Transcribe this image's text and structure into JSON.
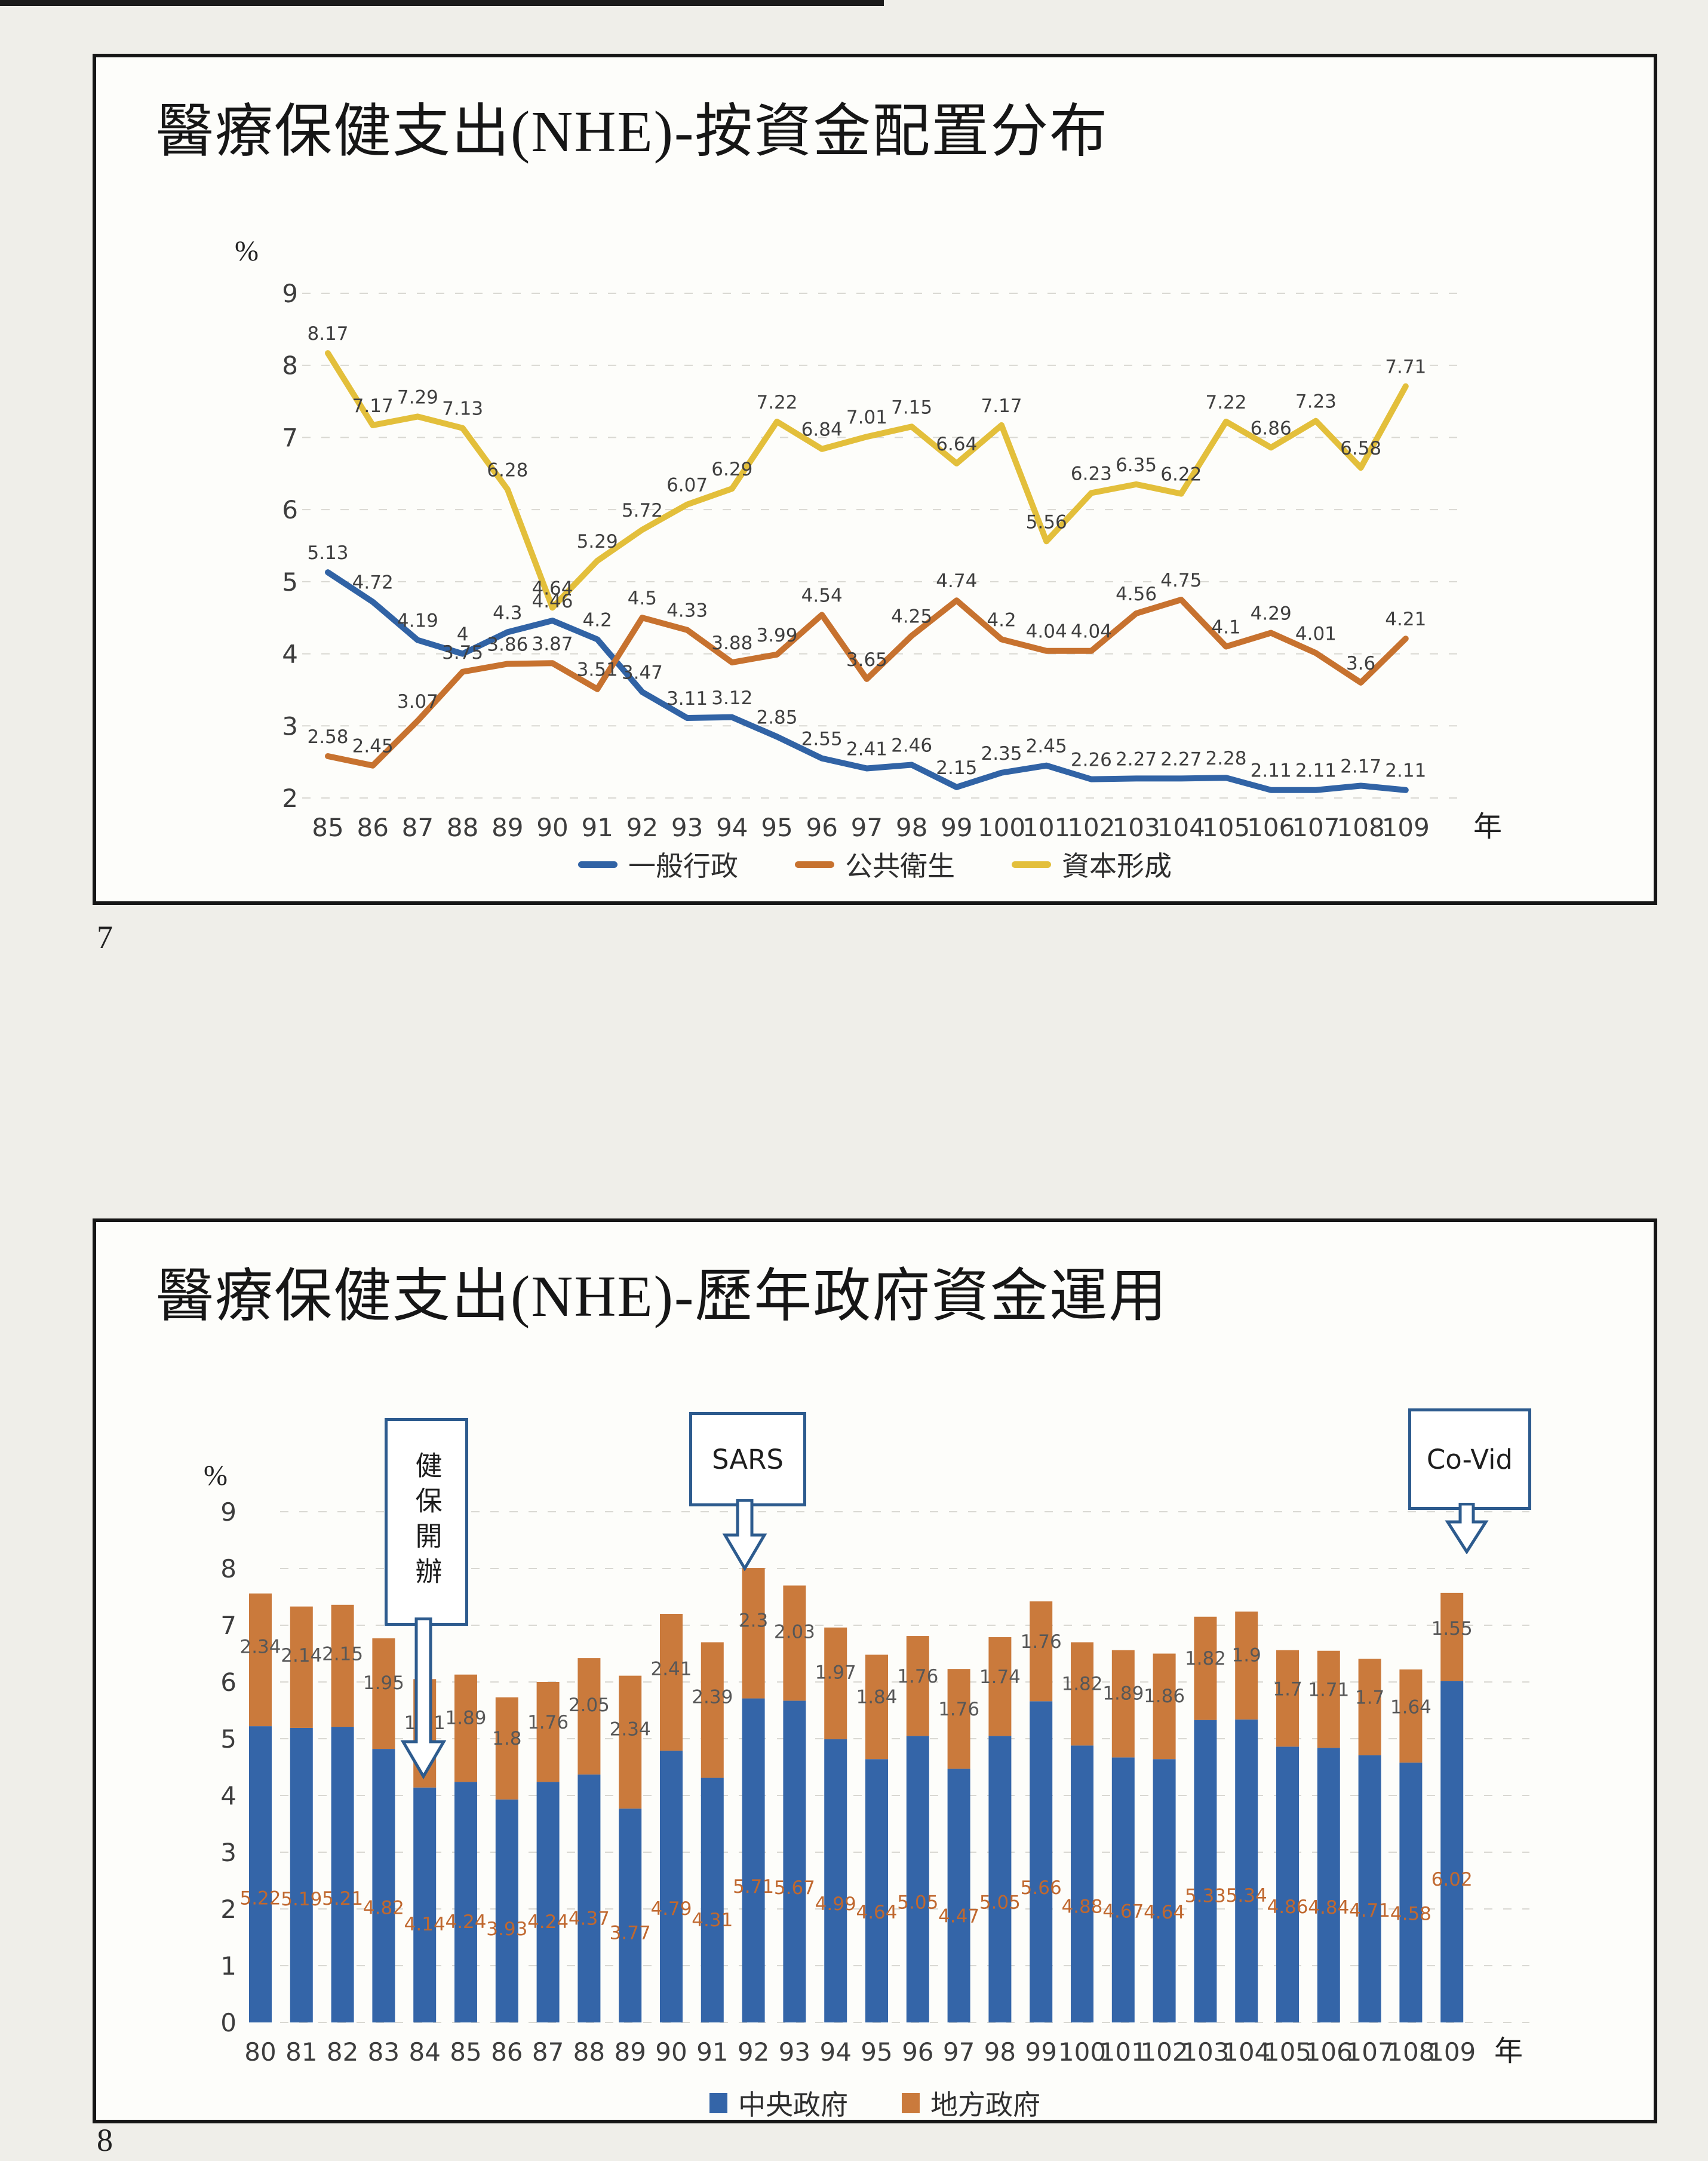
{
  "page": {
    "slide1_number": "7",
    "slide2_number": "8"
  },
  "slide1": {
    "title": "醫療保健支出(NHE)-按資金配置分布",
    "y_axis_unit": "%",
    "x_axis_unit": "年"
  },
  "slide2": {
    "title": "醫療保健支出(NHE)-歷年政府資金運用",
    "y_axis_unit": "%",
    "x_axis_unit": "年",
    "callouts": [
      {
        "text": "健保開辦",
        "target_year": "84"
      },
      {
        "text": "SARS",
        "target_year": "92"
      },
      {
        "text": "Co-Vid",
        "target_year": "109"
      }
    ]
  },
  "chart_data": [
    {
      "type": "line",
      "title": "醫療保健支出(NHE)-按資金配置分布",
      "xlabel": "年",
      "ylabel": "%",
      "ylim": [
        2,
        9
      ],
      "grid": true,
      "legend_position": "bottom",
      "x": [
        "85",
        "86",
        "87",
        "88",
        "89",
        "90",
        "91",
        "92",
        "93",
        "94",
        "95",
        "96",
        "97",
        "98",
        "99",
        "100",
        "101",
        "102",
        "103",
        "104",
        "105",
        "106",
        "107",
        "108",
        "109"
      ],
      "series": [
        {
          "name": "一般行政",
          "color": "#3163a5",
          "values": [
            5.13,
            4.72,
            4.19,
            4,
            4.3,
            4.46,
            4.2,
            3.47,
            3.11,
            3.12,
            2.85,
            2.55,
            2.41,
            2.46,
            2.15,
            2.35,
            2.45,
            2.26,
            2.27,
            2.27,
            2.28,
            2.11,
            2.11,
            2.17,
            2.11
          ]
        },
        {
          "name": "公共衛生",
          "color": "#c7722f",
          "values": [
            2.58,
            2.45,
            3.07,
            3.75,
            3.86,
            3.87,
            3.51,
            4.5,
            4.33,
            3.88,
            3.99,
            4.54,
            3.65,
            4.25,
            4.74,
            4.2,
            4.04,
            4.04,
            4.56,
            4.75,
            4.1,
            4.29,
            4.01,
            3.6,
            4.21
          ]
        },
        {
          "name": "資本形成",
          "color": "#e3bf3b",
          "values": [
            8.17,
            7.17,
            7.29,
            7.13,
            6.28,
            4.64,
            5.29,
            5.72,
            6.07,
            6.29,
            7.22,
            6.84,
            7.01,
            7.15,
            6.64,
            7.17,
            5.56,
            6.23,
            6.35,
            6.22,
            7.22,
            6.86,
            7.23,
            6.58,
            7.71
          ]
        }
      ]
    },
    {
      "type": "bar",
      "stacked": true,
      "title": "醫療保健支出(NHE)-歷年政府資金運用",
      "xlabel": "年",
      "ylabel": "%",
      "ylim": [
        0,
        9
      ],
      "grid": true,
      "legend_position": "bottom",
      "x": [
        "80",
        "81",
        "82",
        "83",
        "84",
        "85",
        "86",
        "87",
        "88",
        "89",
        "90",
        "91",
        "92",
        "93",
        "94",
        "95",
        "96",
        "97",
        "98",
        "99",
        "100",
        "101",
        "102",
        "103",
        "104",
        "105",
        "106",
        "107",
        "108",
        "109"
      ],
      "series": [
        {
          "name": "中央政府",
          "color": "#3465a8",
          "label_color": "#c0682f",
          "values": [
            5.22,
            5.19,
            5.21,
            4.82,
            4.14,
            4.24,
            3.93,
            4.24,
            4.37,
            3.77,
            4.79,
            4.31,
            5.71,
            5.67,
            4.99,
            4.64,
            5.05,
            4.47,
            5.05,
            5.66,
            4.88,
            4.67,
            4.64,
            5.33,
            5.34,
            4.86,
            4.84,
            4.71,
            4.58,
            6.02
          ]
        },
        {
          "name": "地方政府",
          "color": "#ca7a3c",
          "label_color": "#575757",
          "values": [
            2.34,
            2.14,
            2.15,
            1.95,
            1.91,
            1.89,
            1.8,
            1.76,
            2.05,
            2.34,
            2.41,
            2.39,
            2.3,
            2.03,
            1.97,
            1.84,
            1.76,
            1.76,
            1.74,
            1.76,
            1.82,
            1.89,
            1.86,
            1.82,
            1.9,
            1.7,
            1.71,
            1.7,
            1.64,
            1.55
          ]
        }
      ]
    }
  ]
}
